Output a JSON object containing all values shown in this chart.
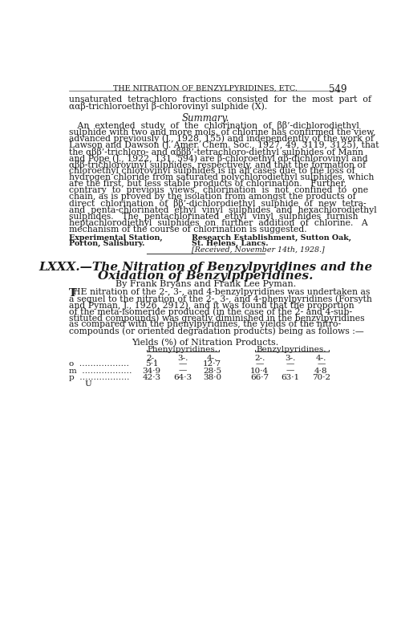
{
  "page_header": "THE NITRATION OF BENZYLPYRIDINES, ETC.",
  "page_number": "549",
  "bg_color": "#ffffff",
  "text_color": "#1a1a1a",
  "affil_left1": "Experimental Station,",
  "affil_left2": "Porton, Salisbury.",
  "affil_right1": "Research Establishment, Sutton Oak,",
  "affil_right2": "St. Helens, Lancs.",
  "affil_right3": "[Received, November 14th, 1928.]",
  "article_title1": "LXXX.—The Nitration of Benzylpyridines and the",
  "article_title2": "Oxidation of Benzylpiperidines.",
  "authors": "By Frank Bryans and Frank Lee Pyman.",
  "table_title": "Yields (%) of Nitration Products.",
  "col_header1": "Phenylpyridines.",
  "col_header2": "Benzylpyridines.",
  "sub_headers": [
    "2-.",
    "3-.",
    "4-.",
    "2-.",
    "3-.",
    "4-."
  ],
  "row_labels": [
    "o  ………………",
    "m  ………………",
    "p  ………………"
  ],
  "row_data": [
    [
      "5·1",
      "—",
      "12·7",
      "—",
      "—",
      "—"
    ],
    [
      "34·9",
      "—",
      "28·5",
      "10·4",
      "—",
      "4·8"
    ],
    [
      "42·3",
      "64·3",
      "38·0",
      "66·7",
      "63·1",
      "70·2"
    ]
  ],
  "footnote": "U",
  "summary_lines": [
    "   An  extended  study  of  the  chlorination  of  ββ’-dichlorodiethyl",
    "sulphide with two and more mols. of chlorine has confirmed the view,",
    "advanced previously (J., 1928, 155) and independently of the work of",
    "Lawson and Dawson (J. Amer. Chem. Soc., 1927, 49, 3119, 3125), that",
    "the αββ’-trichloro- and αβββ’-tetrachloro-diethyl sulphides of Mann",
    "and Pope (J., 1922, 131, 594) are β-chloroethyl αβ-dichlorovinyl and",
    "αββ-trichlorovinyl sulphides, respectively, and that the formation of",
    "chloroethyl chlorovinyl sulphides is in all cases due to the loss of",
    "hydrogen chloride from saturated polychlorodiethyl sulphides, which",
    "are the first, but less stable products of chlorination.   Further,",
    "contrary  to  previous  views,  chlorination  is  not  confined  to  one",
    "chain, as is proved by the isolation from amongst the products of",
    "direct  chlorination  of  ββ’-dichlorodiethyl  sulphide  of  new  tetra-",
    "and  penta-chlorinated  ethyl  vinyl  sulphides  and  hexachlorodiethyl",
    "sulphides.   The  pentachlorinated  ethyl  vinyl  sulphides  furnish",
    "heptachlorodiethyl  sulphides  on  further  addition  of  chlorine.   A",
    "mechanism of the course of chlorination is suggested."
  ],
  "intro_lines": [
    "HE nitration of the 2-, 3-, and 4-benzylpyridines was undertaken as",
    "a sequel to the nitration of the 2-, 3-, and 4-phenylpyridines (Forsyth",
    "and Pyman, J., 1926, 2912), and it was found that the proportion",
    "of the meta-isomeride produced (in the case of the 2- and 4-sub-",
    "stituted compounds) was greatly diminished in the benzylpyridines",
    "as compared with the phenylpyridines, the yields of the nitro-",
    "compounds (or oriented degradation products) being as follows :—"
  ]
}
